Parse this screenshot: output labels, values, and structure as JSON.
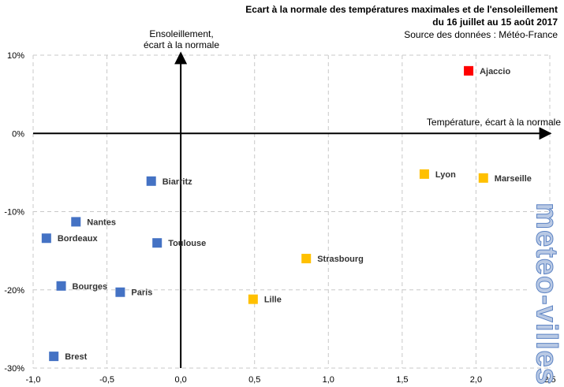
{
  "header": {
    "title_line1": "Ecart à la normale des températures maximales  et de l'ensoleillement",
    "title_line2": "du 16 juillet au 15 août 2017",
    "source": "Source des données : Météo-France"
  },
  "watermark": {
    "text": "meteo-villes"
  },
  "colors": {
    "blue": "#4472c4",
    "yellow": "#ffc000",
    "red": "#ff0000",
    "grid": "#c8c8c8",
    "axis": "#000000",
    "watermark_fill": "#b9c9e4"
  },
  "chart_data": {
    "type": "scatter",
    "xlabel": "Température,  écart à la normale",
    "ylabel_line1": "Ensoleillement,",
    "ylabel_line2": "écart à la normale",
    "xlim": [
      -1.0,
      2.5
    ],
    "ylim": [
      -30,
      10
    ],
    "x_ticks": [
      -1.0,
      -0.5,
      0.0,
      0.5,
      1.0,
      1.5,
      2.0,
      2.5
    ],
    "x_tick_labels": [
      "-1,0",
      "-0,5",
      "0,0",
      "0,5",
      "1,0",
      "1,5",
      "2,0",
      "2,5"
    ],
    "y_ticks": [
      10,
      0,
      -10,
      -20,
      -30
    ],
    "y_tick_labels": [
      "10%",
      "0%",
      "-10%",
      "-20%",
      "-30%"
    ],
    "grid": true,
    "points": [
      {
        "label": "Ajaccio",
        "x": 1.95,
        "y": 8.0,
        "color": "red"
      },
      {
        "label": "Lyon",
        "x": 1.65,
        "y": -5.2,
        "color": "yellow"
      },
      {
        "label": "Marseille",
        "x": 2.05,
        "y": -5.7,
        "color": "yellow"
      },
      {
        "label": "Strasbourg",
        "x": 0.85,
        "y": -16.0,
        "color": "yellow"
      },
      {
        "label": "Lille",
        "x": 0.49,
        "y": -21.2,
        "color": "yellow"
      },
      {
        "label": "Biarritz",
        "x": -0.2,
        "y": -6.1,
        "color": "blue"
      },
      {
        "label": "Nantes",
        "x": -0.71,
        "y": -11.3,
        "color": "blue"
      },
      {
        "label": "Bordeaux",
        "x": -0.91,
        "y": -13.4,
        "color": "blue"
      },
      {
        "label": "Toulouse",
        "x": -0.16,
        "y": -14.0,
        "color": "blue"
      },
      {
        "label": "Bourges",
        "x": -0.81,
        "y": -19.5,
        "color": "blue"
      },
      {
        "label": "Paris",
        "x": -0.41,
        "y": -20.3,
        "color": "blue"
      },
      {
        "label": "Brest",
        "x": -0.86,
        "y": -28.5,
        "color": "blue"
      }
    ]
  }
}
